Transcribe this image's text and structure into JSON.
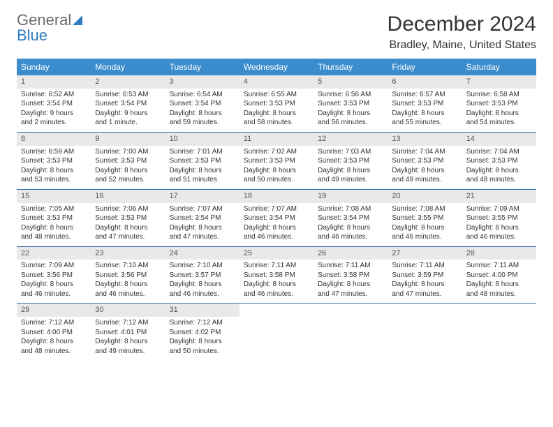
{
  "logo": {
    "line1": "General",
    "line2": "Blue"
  },
  "title": "December 2024",
  "location": "Bradley, Maine, United States",
  "colors": {
    "header_bg": "#3b8ccc",
    "row_divider": "#2f6ea8",
    "daynum_bg": "#e9e9e9",
    "text": "#333333",
    "logo_gray": "#6b6b6b",
    "logo_blue": "#2f7ac0"
  },
  "weekdays": [
    "Sunday",
    "Monday",
    "Tuesday",
    "Wednesday",
    "Thursday",
    "Friday",
    "Saturday"
  ],
  "weeks": [
    [
      {
        "n": "1",
        "sr": "Sunrise: 6:52 AM",
        "ss": "Sunset: 3:54 PM",
        "d1": "Daylight: 9 hours",
        "d2": "and 2 minutes."
      },
      {
        "n": "2",
        "sr": "Sunrise: 6:53 AM",
        "ss": "Sunset: 3:54 PM",
        "d1": "Daylight: 9 hours",
        "d2": "and 1 minute."
      },
      {
        "n": "3",
        "sr": "Sunrise: 6:54 AM",
        "ss": "Sunset: 3:54 PM",
        "d1": "Daylight: 8 hours",
        "d2": "and 59 minutes."
      },
      {
        "n": "4",
        "sr": "Sunrise: 6:55 AM",
        "ss": "Sunset: 3:53 PM",
        "d1": "Daylight: 8 hours",
        "d2": "and 58 minutes."
      },
      {
        "n": "5",
        "sr": "Sunrise: 6:56 AM",
        "ss": "Sunset: 3:53 PM",
        "d1": "Daylight: 8 hours",
        "d2": "and 56 minutes."
      },
      {
        "n": "6",
        "sr": "Sunrise: 6:57 AM",
        "ss": "Sunset: 3:53 PM",
        "d1": "Daylight: 8 hours",
        "d2": "and 55 minutes."
      },
      {
        "n": "7",
        "sr": "Sunrise: 6:58 AM",
        "ss": "Sunset: 3:53 PM",
        "d1": "Daylight: 8 hours",
        "d2": "and 54 minutes."
      }
    ],
    [
      {
        "n": "8",
        "sr": "Sunrise: 6:59 AM",
        "ss": "Sunset: 3:53 PM",
        "d1": "Daylight: 8 hours",
        "d2": "and 53 minutes."
      },
      {
        "n": "9",
        "sr": "Sunrise: 7:00 AM",
        "ss": "Sunset: 3:53 PM",
        "d1": "Daylight: 8 hours",
        "d2": "and 52 minutes."
      },
      {
        "n": "10",
        "sr": "Sunrise: 7:01 AM",
        "ss": "Sunset: 3:53 PM",
        "d1": "Daylight: 8 hours",
        "d2": "and 51 minutes."
      },
      {
        "n": "11",
        "sr": "Sunrise: 7:02 AM",
        "ss": "Sunset: 3:53 PM",
        "d1": "Daylight: 8 hours",
        "d2": "and 50 minutes."
      },
      {
        "n": "12",
        "sr": "Sunrise: 7:03 AM",
        "ss": "Sunset: 3:53 PM",
        "d1": "Daylight: 8 hours",
        "d2": "and 49 minutes."
      },
      {
        "n": "13",
        "sr": "Sunrise: 7:04 AM",
        "ss": "Sunset: 3:53 PM",
        "d1": "Daylight: 8 hours",
        "d2": "and 49 minutes."
      },
      {
        "n": "14",
        "sr": "Sunrise: 7:04 AM",
        "ss": "Sunset: 3:53 PM",
        "d1": "Daylight: 8 hours",
        "d2": "and 48 minutes."
      }
    ],
    [
      {
        "n": "15",
        "sr": "Sunrise: 7:05 AM",
        "ss": "Sunset: 3:53 PM",
        "d1": "Daylight: 8 hours",
        "d2": "and 48 minutes."
      },
      {
        "n": "16",
        "sr": "Sunrise: 7:06 AM",
        "ss": "Sunset: 3:53 PM",
        "d1": "Daylight: 8 hours",
        "d2": "and 47 minutes."
      },
      {
        "n": "17",
        "sr": "Sunrise: 7:07 AM",
        "ss": "Sunset: 3:54 PM",
        "d1": "Daylight: 8 hours",
        "d2": "and 47 minutes."
      },
      {
        "n": "18",
        "sr": "Sunrise: 7:07 AM",
        "ss": "Sunset: 3:54 PM",
        "d1": "Daylight: 8 hours",
        "d2": "and 46 minutes."
      },
      {
        "n": "19",
        "sr": "Sunrise: 7:08 AM",
        "ss": "Sunset: 3:54 PM",
        "d1": "Daylight: 8 hours",
        "d2": "and 46 minutes."
      },
      {
        "n": "20",
        "sr": "Sunrise: 7:08 AM",
        "ss": "Sunset: 3:55 PM",
        "d1": "Daylight: 8 hours",
        "d2": "and 46 minutes."
      },
      {
        "n": "21",
        "sr": "Sunrise: 7:09 AM",
        "ss": "Sunset: 3:55 PM",
        "d1": "Daylight: 8 hours",
        "d2": "and 46 minutes."
      }
    ],
    [
      {
        "n": "22",
        "sr": "Sunrise: 7:09 AM",
        "ss": "Sunset: 3:56 PM",
        "d1": "Daylight: 8 hours",
        "d2": "and 46 minutes."
      },
      {
        "n": "23",
        "sr": "Sunrise: 7:10 AM",
        "ss": "Sunset: 3:56 PM",
        "d1": "Daylight: 8 hours",
        "d2": "and 46 minutes."
      },
      {
        "n": "24",
        "sr": "Sunrise: 7:10 AM",
        "ss": "Sunset: 3:57 PM",
        "d1": "Daylight: 8 hours",
        "d2": "and 46 minutes."
      },
      {
        "n": "25",
        "sr": "Sunrise: 7:11 AM",
        "ss": "Sunset: 3:58 PM",
        "d1": "Daylight: 8 hours",
        "d2": "and 46 minutes."
      },
      {
        "n": "26",
        "sr": "Sunrise: 7:11 AM",
        "ss": "Sunset: 3:58 PM",
        "d1": "Daylight: 8 hours",
        "d2": "and 47 minutes."
      },
      {
        "n": "27",
        "sr": "Sunrise: 7:11 AM",
        "ss": "Sunset: 3:59 PM",
        "d1": "Daylight: 8 hours",
        "d2": "and 47 minutes."
      },
      {
        "n": "28",
        "sr": "Sunrise: 7:11 AM",
        "ss": "Sunset: 4:00 PM",
        "d1": "Daylight: 8 hours",
        "d2": "and 48 minutes."
      }
    ],
    [
      {
        "n": "29",
        "sr": "Sunrise: 7:12 AM",
        "ss": "Sunset: 4:00 PM",
        "d1": "Daylight: 8 hours",
        "d2": "and 48 minutes."
      },
      {
        "n": "30",
        "sr": "Sunrise: 7:12 AM",
        "ss": "Sunset: 4:01 PM",
        "d1": "Daylight: 8 hours",
        "d2": "and 49 minutes."
      },
      {
        "n": "31",
        "sr": "Sunrise: 7:12 AM",
        "ss": "Sunset: 4:02 PM",
        "d1": "Daylight: 8 hours",
        "d2": "and 50 minutes."
      },
      {
        "empty": true
      },
      {
        "empty": true
      },
      {
        "empty": true
      },
      {
        "empty": true
      }
    ]
  ]
}
